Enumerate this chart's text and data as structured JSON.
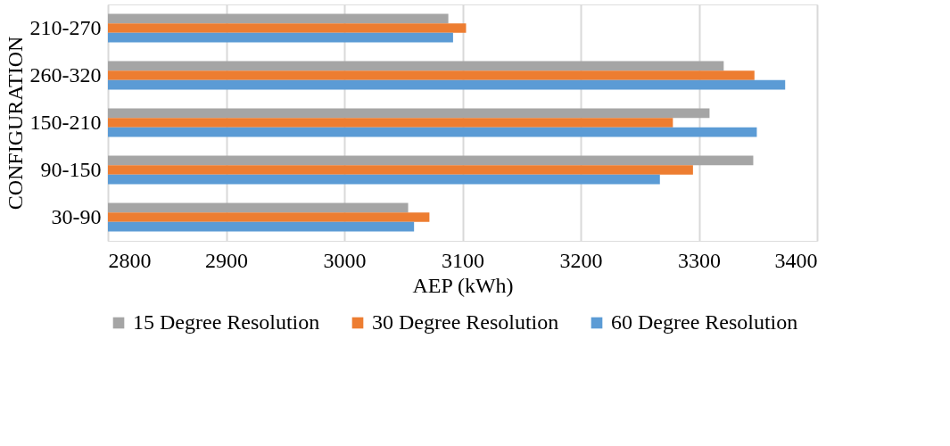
{
  "chart_data": {
    "type": "bar",
    "orientation": "horizontal",
    "xlabel": "AEP (kWh)",
    "ylabel": "CONFIGURATION",
    "categories": [
      "210-270",
      "260-320",
      "150-210",
      "90-150",
      "30-90"
    ],
    "series": [
      {
        "name": "15 Degree Resolution",
        "color": "#a5a5a5",
        "values": [
          3088,
          3321,
          3309,
          3346,
          3054
        ]
      },
      {
        "name": "30 Degree Resolution",
        "color": "#ed7d31",
        "values": [
          3103,
          3347,
          3278,
          3295,
          3072
        ]
      },
      {
        "name": "60 Degree Resolution",
        "color": "#5b9bd5",
        "values": [
          3092,
          3373,
          3349,
          3267,
          3059
        ]
      }
    ],
    "xlim": [
      2800,
      3400
    ],
    "xticks": [
      2800,
      2900,
      3000,
      3100,
      3200,
      3300,
      3400
    ],
    "grid": "x",
    "legend": "bottom"
  }
}
